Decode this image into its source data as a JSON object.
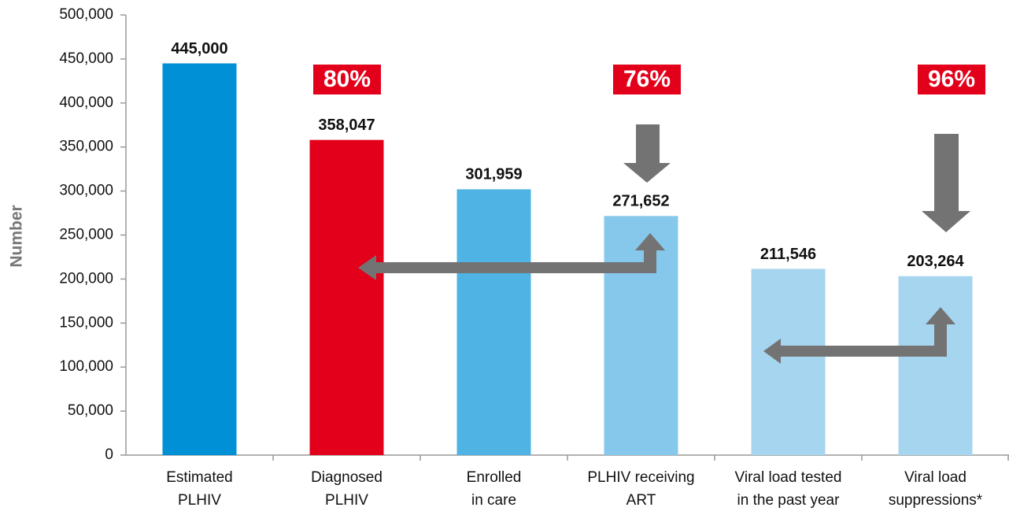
{
  "chart_data": {
    "type": "bar",
    "y_label": "Number",
    "categories": [
      [
        "Estimated",
        "PLHIV"
      ],
      [
        "Diagnosed",
        "PLHIV"
      ],
      [
        "Enrolled",
        "in care"
      ],
      [
        "PLHIV receiving",
        "ART"
      ],
      [
        "Viral load tested",
        "in the past year"
      ],
      [
        "Viral load",
        "suppressions*"
      ]
    ],
    "values": [
      445000,
      358047,
      301959,
      271652,
      211546,
      203264
    ],
    "value_labels": [
      "445,000",
      "358,047",
      "301,959",
      "271,652",
      "211,546",
      "203,264"
    ],
    "colors": [
      "#0090d6",
      "#e2001a",
      "#4fb3e3",
      "#86c8eb",
      "#a6d5f0",
      "#a6d5f0"
    ],
    "annotations": [
      "80%",
      "76%",
      "96%"
    ],
    "ylim": [
      0,
      500000
    ],
    "yticks": [
      0,
      {
        "value": 50000,
        "label": "50,000"
      },
      {
        "value": 100000,
        "label": "100,000"
      },
      {
        "value": 150000,
        "label": "150,000"
      },
      {
        "value": 200000,
        "label": "200,000"
      },
      {
        "value": 250000,
        "label": "250,000"
      },
      {
        "value": 300000,
        "label": "300,000"
      },
      {
        "value": 350000,
        "label": "350,000"
      },
      {
        "value": 400000,
        "label": "400,000"
      },
      {
        "value": 450000,
        "label": "450,000"
      },
      {
        "value": 500000,
        "label": "500,000"
      }
    ]
  }
}
